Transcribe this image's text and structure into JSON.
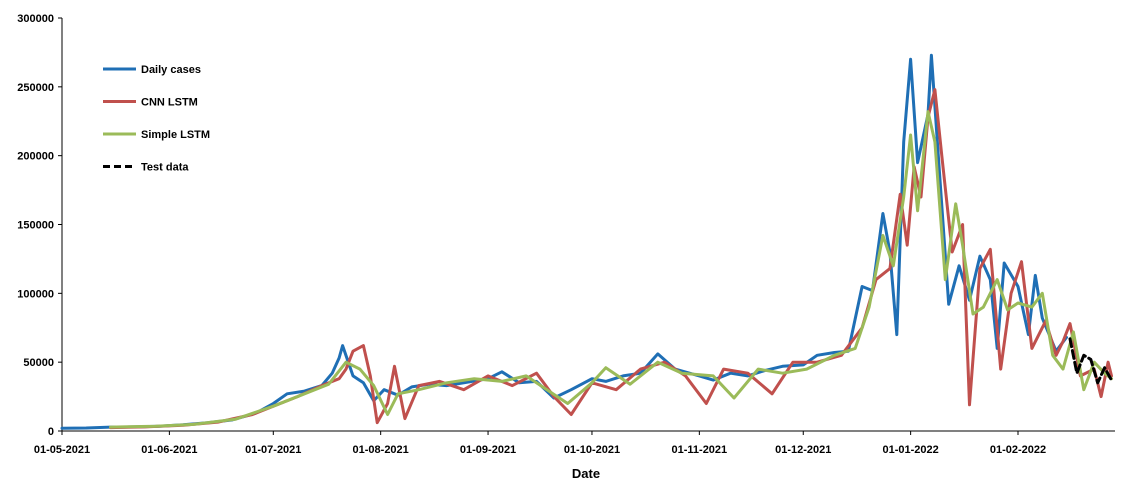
{
  "chart_data": {
    "type": "line",
    "title": "",
    "xlabel": "Date",
    "ylabel": "",
    "x_axis": {
      "start": "2021-05-01",
      "end": "2022-03-01",
      "tick_dates": [
        "2021-05-01",
        "2021-06-01",
        "2021-07-01",
        "2021-08-01",
        "2021-09-01",
        "2021-10-01",
        "2021-11-01",
        "2021-12-01",
        "2022-01-01",
        "2022-02-01"
      ],
      "tick_labels": [
        "01-05-2021",
        "01-06-2021",
        "01-07-2021",
        "01-08-2021",
        "01-09-2021",
        "01-10-2021",
        "01-11-2021",
        "01-12-2021",
        "01-01-2022",
        "01-02-2022"
      ]
    },
    "ylim": [
      0,
      300000
    ],
    "yticks": [
      0,
      50000,
      100000,
      150000,
      200000,
      250000,
      300000
    ],
    "ytick_labels": [
      "0",
      "50000",
      "100000",
      "150000",
      "200000",
      "250000",
      "300000"
    ],
    "grid": false,
    "legend": {
      "placement": "top-left"
    },
    "series": [
      {
        "name": "Daily cases",
        "color": "#1f6fb5",
        "dash": "solid",
        "points": [
          [
            "2021-05-01",
            2000
          ],
          [
            "2021-05-08",
            2200
          ],
          [
            "2021-05-15",
            2800
          ],
          [
            "2021-05-22",
            3000
          ],
          [
            "2021-05-29",
            3500
          ],
          [
            "2021-06-05",
            4500
          ],
          [
            "2021-06-12",
            6000
          ],
          [
            "2021-06-19",
            8000
          ],
          [
            "2021-06-26",
            13000
          ],
          [
            "2021-07-01",
            20000
          ],
          [
            "2021-07-05",
            27000
          ],
          [
            "2021-07-10",
            29000
          ],
          [
            "2021-07-15",
            33000
          ],
          [
            "2021-07-18",
            42000
          ],
          [
            "2021-07-20",
            53000
          ],
          [
            "2021-07-21",
            62000
          ],
          [
            "2021-07-24",
            40000
          ],
          [
            "2021-07-27",
            35000
          ],
          [
            "2021-07-30",
            22000
          ],
          [
            "2021-08-02",
            30000
          ],
          [
            "2021-08-06",
            26000
          ],
          [
            "2021-08-10",
            32000
          ],
          [
            "2021-08-15",
            34000
          ],
          [
            "2021-08-20",
            33000
          ],
          [
            "2021-08-25",
            35000
          ],
          [
            "2021-09-01",
            38000
          ],
          [
            "2021-09-05",
            43000
          ],
          [
            "2021-09-10",
            35000
          ],
          [
            "2021-09-15",
            36000
          ],
          [
            "2021-09-20",
            24000
          ],
          [
            "2021-09-25",
            30000
          ],
          [
            "2021-10-01",
            38000
          ],
          [
            "2021-10-05",
            36000
          ],
          [
            "2021-10-10",
            40000
          ],
          [
            "2021-10-15",
            42000
          ],
          [
            "2021-10-20",
            56000
          ],
          [
            "2021-10-25",
            45000
          ],
          [
            "2021-11-01",
            40000
          ],
          [
            "2021-11-05",
            37000
          ],
          [
            "2021-11-10",
            42000
          ],
          [
            "2021-11-15",
            40000
          ],
          [
            "2021-11-20",
            44000
          ],
          [
            "2021-11-25",
            47000
          ],
          [
            "2021-12-01",
            48000
          ],
          [
            "2021-12-05",
            55000
          ],
          [
            "2021-12-10",
            57000
          ],
          [
            "2021-12-14",
            58000
          ],
          [
            "2021-12-18",
            105000
          ],
          [
            "2021-12-21",
            102000
          ],
          [
            "2021-12-24",
            158000
          ],
          [
            "2021-12-26",
            130000
          ],
          [
            "2021-12-28",
            70000
          ],
          [
            "2021-12-30",
            210000
          ],
          [
            "2022-01-01",
            270000
          ],
          [
            "2022-01-03",
            195000
          ],
          [
            "2022-01-06",
            230000
          ],
          [
            "2022-01-07",
            273000
          ],
          [
            "2022-01-09",
            200000
          ],
          [
            "2022-01-12",
            92000
          ],
          [
            "2022-01-15",
            120000
          ],
          [
            "2022-01-18",
            95000
          ],
          [
            "2022-01-21",
            127000
          ],
          [
            "2022-01-24",
            110000
          ],
          [
            "2022-01-26",
            60000
          ],
          [
            "2022-01-28",
            122000
          ],
          [
            "2022-02-01",
            105000
          ],
          [
            "2022-02-04",
            70000
          ],
          [
            "2022-02-06",
            113000
          ],
          [
            "2022-02-08",
            82000
          ],
          [
            "2022-02-12",
            58000
          ],
          [
            "2022-02-15",
            68000
          ]
        ]
      },
      {
        "name": "CNN LSTM",
        "color": "#c0504d",
        "dash": "solid",
        "points": [
          [
            "2021-05-15",
            2500
          ],
          [
            "2021-05-25",
            3000
          ],
          [
            "2021-06-05",
            4200
          ],
          [
            "2021-06-15",
            6500
          ],
          [
            "2021-06-25",
            12000
          ],
          [
            "2021-07-01",
            18000
          ],
          [
            "2021-07-08",
            25000
          ],
          [
            "2021-07-15",
            33000
          ],
          [
            "2021-07-20",
            38000
          ],
          [
            "2021-07-22",
            45000
          ],
          [
            "2021-07-24",
            58000
          ],
          [
            "2021-07-27",
            62000
          ],
          [
            "2021-07-29",
            40000
          ],
          [
            "2021-07-31",
            6000
          ],
          [
            "2021-08-03",
            20000
          ],
          [
            "2021-08-05",
            47000
          ],
          [
            "2021-08-08",
            9000
          ],
          [
            "2021-08-12",
            33000
          ],
          [
            "2021-08-18",
            36000
          ],
          [
            "2021-08-25",
            30000
          ],
          [
            "2021-09-01",
            40000
          ],
          [
            "2021-09-08",
            33000
          ],
          [
            "2021-09-15",
            42000
          ],
          [
            "2021-09-20",
            25000
          ],
          [
            "2021-09-25",
            12000
          ],
          [
            "2021-10-01",
            35000
          ],
          [
            "2021-10-08",
            30000
          ],
          [
            "2021-10-15",
            45000
          ],
          [
            "2021-10-22",
            50000
          ],
          [
            "2021-10-28",
            40000
          ],
          [
            "2021-11-03",
            20000
          ],
          [
            "2021-11-08",
            45000
          ],
          [
            "2021-11-15",
            42000
          ],
          [
            "2021-11-22",
            27000
          ],
          [
            "2021-11-28",
            50000
          ],
          [
            "2021-12-05",
            50000
          ],
          [
            "2021-12-12",
            55000
          ],
          [
            "2021-12-18",
            75000
          ],
          [
            "2021-12-22",
            110000
          ],
          [
            "2021-12-26",
            118000
          ],
          [
            "2021-12-29",
            172000
          ],
          [
            "2021-12-31",
            135000
          ],
          [
            "2022-01-02",
            192000
          ],
          [
            "2022-01-04",
            170000
          ],
          [
            "2022-01-06",
            228000
          ],
          [
            "2022-01-08",
            248000
          ],
          [
            "2022-01-10",
            200000
          ],
          [
            "2022-01-13",
            130000
          ],
          [
            "2022-01-16",
            150000
          ],
          [
            "2022-01-18",
            19000
          ],
          [
            "2022-01-21",
            118000
          ],
          [
            "2022-01-24",
            132000
          ],
          [
            "2022-01-27",
            45000
          ],
          [
            "2022-01-30",
            100000
          ],
          [
            "2022-02-02",
            123000
          ],
          [
            "2022-02-05",
            60000
          ],
          [
            "2022-02-09",
            80000
          ],
          [
            "2022-02-12",
            55000
          ],
          [
            "2022-02-14",
            65000
          ],
          [
            "2022-02-16",
            78000
          ],
          [
            "2022-02-19",
            40000
          ],
          [
            "2022-02-23",
            45000
          ],
          [
            "2022-02-25",
            25000
          ],
          [
            "2022-02-27",
            50000
          ],
          [
            "2022-02-28",
            40000
          ]
        ]
      },
      {
        "name": "Simple LSTM",
        "color": "#9bbb59",
        "dash": "solid",
        "points": [
          [
            "2021-05-15",
            2800
          ],
          [
            "2021-05-28",
            3500
          ],
          [
            "2021-06-08",
            4800
          ],
          [
            "2021-06-20",
            8500
          ],
          [
            "2021-07-01",
            18000
          ],
          [
            "2021-07-10",
            27000
          ],
          [
            "2021-07-17",
            34000
          ],
          [
            "2021-07-22",
            50000
          ],
          [
            "2021-07-26",
            45000
          ],
          [
            "2021-07-30",
            33000
          ],
          [
            "2021-08-03",
            12000
          ],
          [
            "2021-08-06",
            27000
          ],
          [
            "2021-08-12",
            30000
          ],
          [
            "2021-08-20",
            35000
          ],
          [
            "2021-08-28",
            38000
          ],
          [
            "2021-09-05",
            36000
          ],
          [
            "2021-09-12",
            40000
          ],
          [
            "2021-09-18",
            30000
          ],
          [
            "2021-09-24",
            20000
          ],
          [
            "2021-10-01",
            35000
          ],
          [
            "2021-10-05",
            46000
          ],
          [
            "2021-10-12",
            34000
          ],
          [
            "2021-10-20",
            50000
          ],
          [
            "2021-10-27",
            42000
          ],
          [
            "2021-11-05",
            40000
          ],
          [
            "2021-11-11",
            24000
          ],
          [
            "2021-11-18",
            45000
          ],
          [
            "2021-11-25",
            42000
          ],
          [
            "2021-12-02",
            45000
          ],
          [
            "2021-12-10",
            55000
          ],
          [
            "2021-12-16",
            60000
          ],
          [
            "2021-12-20",
            90000
          ],
          [
            "2021-12-24",
            142000
          ],
          [
            "2021-12-27",
            120000
          ],
          [
            "2021-12-30",
            170000
          ],
          [
            "2022-01-01",
            215000
          ],
          [
            "2022-01-03",
            160000
          ],
          [
            "2022-01-06",
            232000
          ],
          [
            "2022-01-08",
            210000
          ],
          [
            "2022-01-11",
            110000
          ],
          [
            "2022-01-14",
            165000
          ],
          [
            "2022-01-16",
            135000
          ],
          [
            "2022-01-19",
            85000
          ],
          [
            "2022-01-22",
            90000
          ],
          [
            "2022-01-26",
            110000
          ],
          [
            "2022-01-29",
            88000
          ],
          [
            "2022-02-01",
            93000
          ],
          [
            "2022-02-05",
            90000
          ],
          [
            "2022-02-08",
            100000
          ],
          [
            "2022-02-11",
            55000
          ],
          [
            "2022-02-14",
            45000
          ],
          [
            "2022-02-17",
            72000
          ],
          [
            "2022-02-20",
            30000
          ],
          [
            "2022-02-23",
            50000
          ],
          [
            "2022-02-26",
            42000
          ],
          [
            "2022-02-28",
            38000
          ]
        ]
      },
      {
        "name": "Test data",
        "color": "#000000",
        "dash": "dashed",
        "points": [
          [
            "2022-02-16",
            67000
          ],
          [
            "2022-02-18",
            42000
          ],
          [
            "2022-02-20",
            55000
          ],
          [
            "2022-02-22",
            52000
          ],
          [
            "2022-02-24",
            35000
          ],
          [
            "2022-02-26",
            46000
          ],
          [
            "2022-02-28",
            37000
          ]
        ]
      }
    ]
  }
}
